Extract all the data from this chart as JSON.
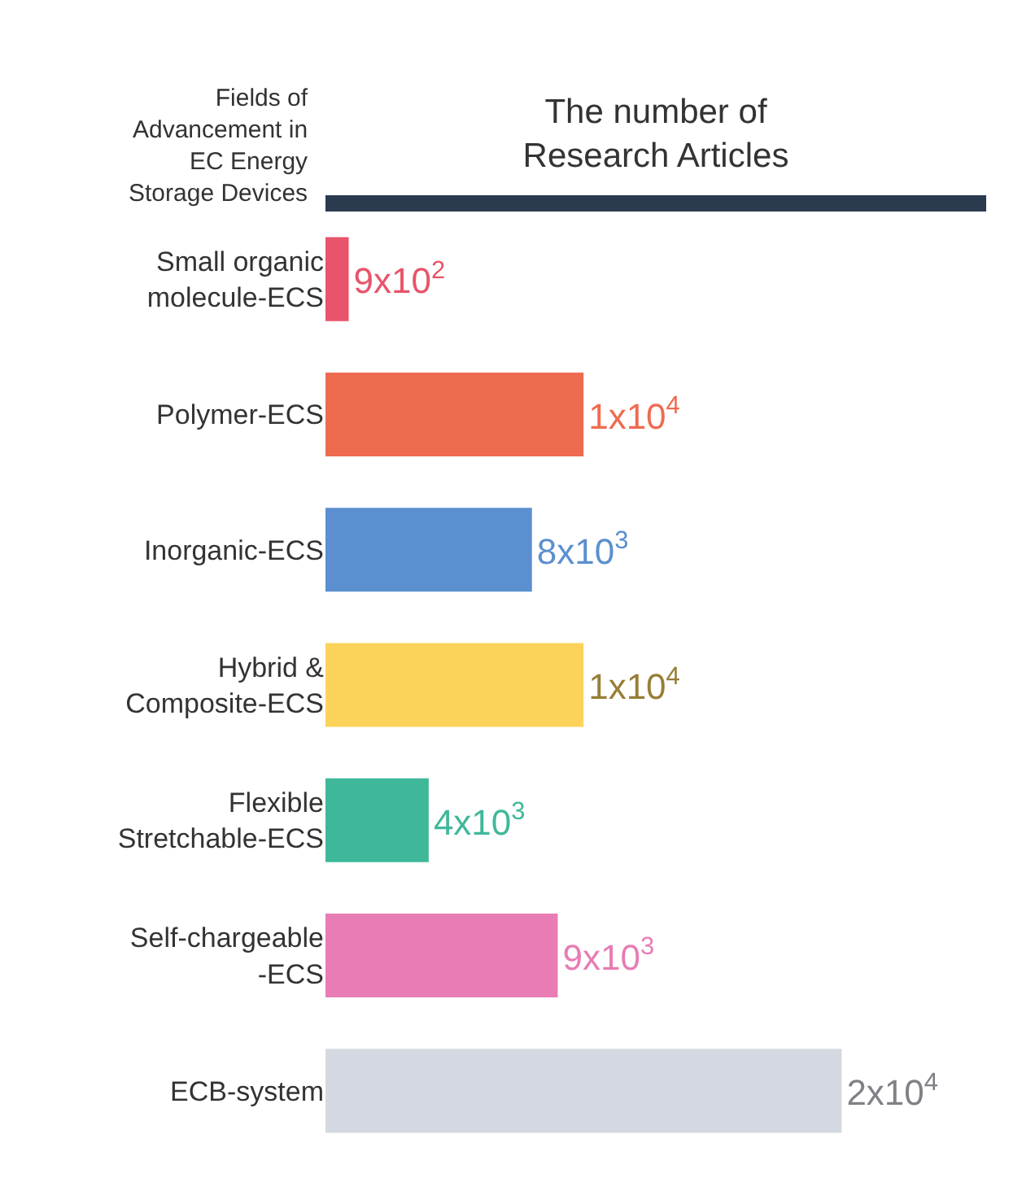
{
  "chart_data": {
    "type": "bar",
    "orientation": "horizontal",
    "ylabel": "Fields of Advancement in EC Energy Storage Devices",
    "xlabel": "The number of Research Articles",
    "categories": [
      "Small organic molecule-ECS",
      "Polymer-ECS",
      "Inorganic-ECS",
      "Hybrid & Composite-ECS",
      "Flexible Stretchable-ECS",
      "Self-chargeable -ECS",
      "ECB-system"
    ],
    "values": [
      900,
      10000,
      8000,
      10000,
      4000,
      9000,
      20000
    ],
    "value_labels": [
      "9x10$^{2}$",
      "1x10$^{4}$",
      "8x10$^{3}$",
      "1x10$^{4}$",
      "4x10$^{3}$",
      "9x10$^{3}$",
      "2x10$^{4}$"
    ],
    "colors": [
      "#e8546a",
      "#ef6b50",
      "#5b8fd0",
      "#fcd35a",
      "#3fb89a",
      "#e87cb4",
      "#d4d8e0"
    ],
    "legend": false
  }
}
